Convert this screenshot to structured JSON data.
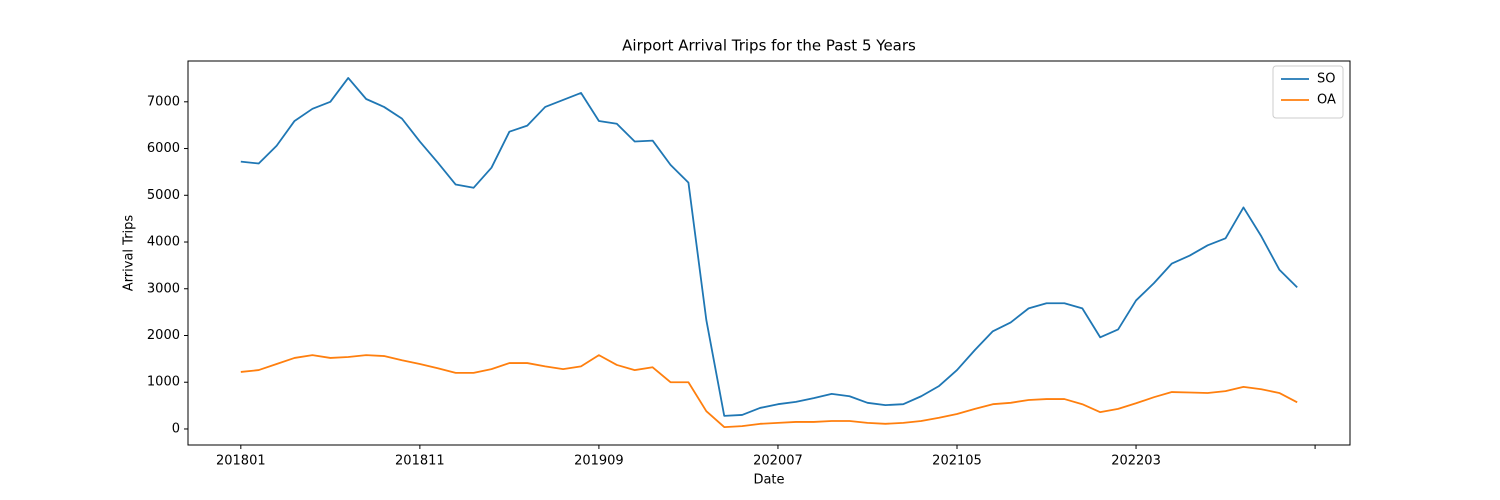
{
  "chart_data": {
    "type": "line",
    "title": "Airport Arrival Trips for the Past 5 Years",
    "xlabel": "Date",
    "ylabel": "Arrival Trips",
    "categories": [
      "201801",
      null,
      null,
      null,
      null,
      null,
      null,
      null,
      null,
      null,
      "201811",
      null,
      null,
      null,
      null,
      null,
      null,
      null,
      null,
      null,
      "201909",
      null,
      null,
      null,
      null,
      null,
      null,
      null,
      null,
      null,
      "202007",
      null,
      null,
      null,
      null,
      null,
      null,
      null,
      null,
      null,
      "202105",
      null,
      null,
      null,
      null,
      null,
      null,
      null,
      null,
      null,
      "202203",
      null,
      null,
      null,
      null,
      null,
      null,
      null,
      null,
      null
    ],
    "xticks": [
      0,
      10,
      20,
      30,
      40,
      50,
      60
    ],
    "xlim": [
      -2.95,
      61.95
    ],
    "ylim": [
      -343,
      7873
    ],
    "yticks": [
      0,
      1000,
      2000,
      3000,
      4000,
      5000,
      6000,
      7000
    ],
    "legend": "upper right",
    "series": [
      {
        "name": "SO",
        "color": "#1f77b4",
        "values": [
          5720,
          5680,
          6060,
          6590,
          6850,
          7000,
          7510,
          7060,
          6890,
          6640,
          6150,
          5700,
          5230,
          5160,
          5590,
          6360,
          6490,
          6890,
          7040,
          7190,
          6590,
          6530,
          6150,
          6170,
          5650,
          5270,
          2330,
          280,
          300,
          450,
          530,
          580,
          660,
          750,
          700,
          560,
          510,
          530,
          700,
          920,
          1260,
          1690,
          2090,
          2280,
          2580,
          2690,
          2690,
          2580,
          1960,
          2130,
          2750,
          3120,
          3540,
          3710,
          3930,
          4080,
          4740,
          4120,
          3410,
          3030
        ]
      },
      {
        "name": "OA",
        "color": "#ff7f0e",
        "values": [
          1220,
          1260,
          1390,
          1520,
          1580,
          1520,
          1540,
          1580,
          1560,
          1470,
          1390,
          1300,
          1200,
          1200,
          1280,
          1410,
          1410,
          1340,
          1280,
          1340,
          1580,
          1370,
          1260,
          1320,
          1000,
          1000,
          380,
          40,
          60,
          110,
          130,
          150,
          150,
          170,
          170,
          130,
          110,
          130,
          170,
          240,
          320,
          430,
          530,
          560,
          620,
          640,
          640,
          530,
          360,
          430,
          550,
          680,
          790,
          780,
          770,
          810,
          900,
          850,
          770,
          570
        ]
      }
    ]
  }
}
